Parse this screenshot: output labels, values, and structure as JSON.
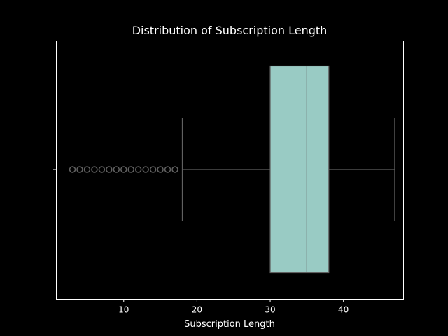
{
  "chart_data": {
    "type": "box",
    "orientation": "horizontal",
    "title": "Distribution of Subscription Length",
    "xlabel": "Subscription Length",
    "ylabel": "",
    "xlim": [
      0.8,
      48.2
    ],
    "xticks": [
      10,
      20,
      30,
      40
    ],
    "yticks": [
      ""
    ],
    "grid": false,
    "legend": "none",
    "box": {
      "q1": 30,
      "median": 35,
      "q3": 38,
      "whisker_low": 18,
      "whisker_high": 47
    },
    "outliers": [
      3,
      4,
      5,
      6,
      7,
      8,
      9,
      10,
      11,
      12,
      13,
      14,
      15,
      16,
      17
    ],
    "colors": {
      "background": "#000000",
      "box_fill": "#99cbc4",
      "box_line": "#616161",
      "frame": "#ffffff",
      "text": "#ffffff"
    }
  }
}
